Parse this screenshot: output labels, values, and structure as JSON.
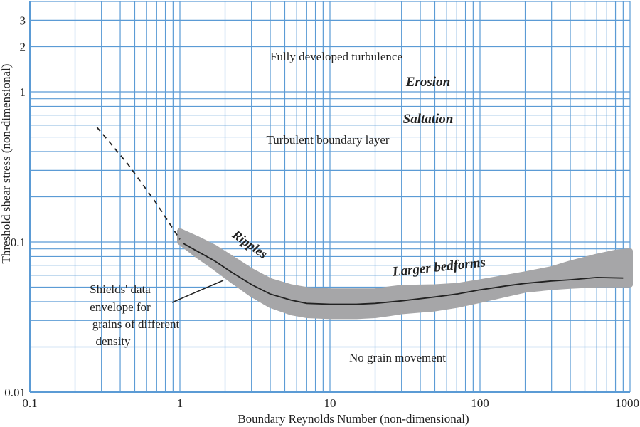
{
  "chart_data": {
    "type": "line",
    "x_scale": "log",
    "y_scale": "log",
    "xlim": [
      0.1,
      1000
    ],
    "ylim": [
      0.01,
      4
    ],
    "grid": true,
    "xlabel": "Boundary Reynolds Number (non-dimensional)",
    "ylabel": "Threshold shear stress (non-dimensional)",
    "x_ticks": [
      {
        "v": 0.1,
        "label": "0.1"
      },
      {
        "v": 1,
        "label": "1"
      },
      {
        "v": 10,
        "label": "10"
      },
      {
        "v": 100,
        "label": "100"
      },
      {
        "v": 1000,
        "label": "1000"
      }
    ],
    "y_ticks": [
      {
        "v": 0.01,
        "label": "0.01"
      },
      {
        "v": 0.1,
        "label": "0.1"
      },
      {
        "v": 1,
        "label": "1"
      },
      {
        "v": 2,
        "label": "2"
      },
      {
        "v": 3,
        "label": "3"
      }
    ],
    "series": [
      {
        "style": "solid",
        "color": "#222222",
        "x": [
          1.05,
          1.3,
          1.7,
          2.2,
          3,
          4,
          5.5,
          7,
          10,
          15,
          20,
          30,
          50,
          70,
          100,
          150,
          200,
          300,
          400,
          600,
          900
        ],
        "y": [
          0.098,
          0.087,
          0.075,
          0.063,
          0.052,
          0.045,
          0.041,
          0.039,
          0.0385,
          0.0385,
          0.039,
          0.0405,
          0.043,
          0.045,
          0.048,
          0.051,
          0.053,
          0.055,
          0.056,
          0.058,
          0.0575
        ]
      },
      {
        "style": "dashed",
        "color": "#222222",
        "x": [
          0.28,
          0.45,
          0.7,
          1.0
        ],
        "y": [
          0.58,
          0.33,
          0.18,
          0.104
        ]
      }
    ],
    "envelope": {
      "color": "#a6a6a8",
      "x": [
        1.0,
        1.3,
        1.7,
        2.2,
        3,
        4,
        5.5,
        7,
        10,
        15,
        20,
        25,
        30,
        50,
        70,
        100,
        150,
        200,
        300,
        400,
        600,
        800,
        1000
      ],
      "upper": [
        0.118,
        0.105,
        0.092,
        0.078,
        0.064,
        0.055,
        0.05,
        0.048,
        0.047,
        0.047,
        0.047,
        0.0485,
        0.0495,
        0.05,
        0.051,
        0.054,
        0.058,
        0.061,
        0.066,
        0.072,
        0.08,
        0.085,
        0.087
      ],
      "lower": [
        0.1,
        0.082,
        0.068,
        0.056,
        0.045,
        0.038,
        0.034,
        0.0325,
        0.032,
        0.032,
        0.0325,
        0.0335,
        0.0345,
        0.036,
        0.038,
        0.041,
        0.045,
        0.048,
        0.05,
        0.051,
        0.052,
        0.052,
        0.052
      ]
    },
    "annotations": [
      {
        "text": "Fully developed turbulence",
        "style": "normal"
      },
      {
        "text": "Erosion",
        "style": "bold-italic"
      },
      {
        "text": "Saltation",
        "style": "bold-italic"
      },
      {
        "text": "Turbulent boundary layer",
        "style": "normal"
      },
      {
        "text": "Ripples",
        "style": "bold-italic"
      },
      {
        "text": "Larger bedforms",
        "style": "bold-italic"
      },
      {
        "text": "No grain movement",
        "style": "normal"
      },
      {
        "text": "Shields' data",
        "style": "normal"
      },
      {
        "text": "envelope for",
        "style": "normal"
      },
      {
        "text": "grains of different",
        "style": "normal"
      },
      {
        "text": "density",
        "style": "normal"
      }
    ]
  }
}
